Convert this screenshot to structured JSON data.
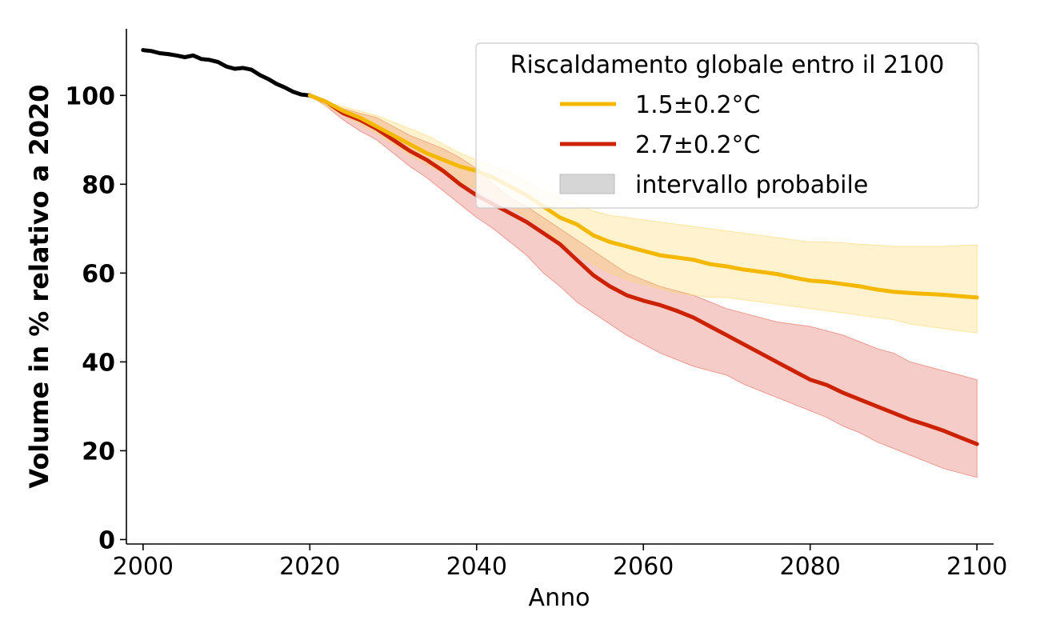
{
  "chart_data": {
    "type": "line",
    "xlabel": "Anno",
    "ylabel": "Volume in % relativo a 2020",
    "xlim": [
      1998,
      2102
    ],
    "ylim": [
      -1,
      115
    ],
    "x_ticks": [
      2000,
      2020,
      2040,
      2060,
      2080,
      2100
    ],
    "y_ticks": [
      0,
      20,
      40,
      60,
      80,
      100
    ],
    "x_tick_labels": [
      "2000",
      "2020",
      "2040",
      "2060",
      "2080",
      "2100"
    ],
    "y_tick_labels": [
      "0",
      "20",
      "40",
      "60",
      "80",
      "100"
    ],
    "legend": {
      "title": "Riscaldamento globale entro il 2100",
      "placement": "top-right",
      "entries": [
        {
          "label": "1.5±0.2°C",
          "color": "#f5b800",
          "kind": "line"
        },
        {
          "label": "2.7±0.2°C",
          "color": "#cc2200",
          "kind": "line"
        },
        {
          "label": "intervallo probabile",
          "color": "#d6d6d6",
          "kind": "patch"
        }
      ]
    },
    "series": [
      {
        "name": "observed",
        "color": "#000000",
        "x": [
          2000,
          2001,
          2002,
          2003,
          2004,
          2005,
          2006,
          2007,
          2008,
          2009,
          2010,
          2011,
          2012,
          2013,
          2014,
          2015,
          2016,
          2017,
          2018,
          2019,
          2020
        ],
        "values": [
          110.2,
          110.0,
          109.5,
          109.3,
          109.0,
          108.6,
          109.0,
          108.2,
          108.0,
          107.5,
          106.5,
          106.0,
          106.2,
          105.8,
          104.6,
          103.7,
          102.6,
          101.8,
          100.8,
          100.2,
          100.0
        ]
      },
      {
        "name": "2.7±0.2°C",
        "color": "#cc2200",
        "band_color": "#e06050",
        "x": [
          2020,
          2022,
          2024,
          2026,
          2028,
          2030,
          2032,
          2034,
          2036,
          2038,
          2040,
          2042,
          2044,
          2046,
          2048,
          2050,
          2052,
          2054,
          2056,
          2058,
          2060,
          2062,
          2064,
          2066,
          2068,
          2070,
          2072,
          2074,
          2076,
          2078,
          2080,
          2082,
          2084,
          2086,
          2088,
          2090,
          2092,
          2094,
          2096,
          2098,
          2100
        ],
        "values": [
          100.0,
          98.5,
          96.0,
          94.5,
          92.5,
          90.0,
          87.5,
          85.5,
          83.0,
          80.0,
          77.5,
          75.5,
          73.5,
          71.5,
          69.0,
          66.5,
          63.0,
          59.5,
          57.0,
          55.0,
          53.8,
          52.8,
          51.5,
          50.0,
          48.0,
          46.0,
          44.0,
          42.0,
          40.0,
          38.0,
          36.0,
          34.8,
          33.0,
          31.5,
          30.0,
          28.5,
          27.0,
          25.8,
          24.5,
          23.0,
          21.5
        ],
        "lower": [
          100.0,
          97.5,
          94.5,
          92.0,
          90.0,
          87.0,
          84.0,
          81.5,
          78.5,
          75.5,
          72.5,
          70.0,
          67.0,
          64.0,
          60.0,
          57.0,
          53.5,
          51.0,
          48.5,
          46.0,
          44.0,
          42.0,
          40.5,
          39.0,
          38.0,
          37.0,
          35.0,
          33.5,
          32.0,
          30.5,
          29.0,
          27.5,
          25.5,
          24.0,
          22.0,
          20.5,
          19.0,
          17.5,
          16.0,
          15.0,
          14.0
        ],
        "upper": [
          100.0,
          98.5,
          97.0,
          96.0,
          95.0,
          93.0,
          91.0,
          89.5,
          88.0,
          86.0,
          83.5,
          80.0,
          77.0,
          75.0,
          72.5,
          70.0,
          67.5,
          65.0,
          62.5,
          60.0,
          58.5,
          57.0,
          56.0,
          55.0,
          53.5,
          52.0,
          51.0,
          50.0,
          49.0,
          48.5,
          48.0,
          47.0,
          46.0,
          44.5,
          43.0,
          42.0,
          40.0,
          39.0,
          38.0,
          37.0,
          36.0
        ]
      },
      {
        "name": "1.5±0.2°C",
        "color": "#f5b800",
        "band_color": "#fcd76a",
        "x": [
          2020,
          2022,
          2024,
          2026,
          2028,
          2030,
          2032,
          2034,
          2036,
          2038,
          2040,
          2042,
          2044,
          2046,
          2048,
          2050,
          2052,
          2054,
          2056,
          2058,
          2060,
          2062,
          2064,
          2066,
          2068,
          2070,
          2072,
          2074,
          2076,
          2078,
          2080,
          2082,
          2084,
          2086,
          2088,
          2090,
          2092,
          2094,
          2096,
          2098,
          2100
        ],
        "values": [
          100.0,
          98.5,
          96.5,
          95.0,
          93.0,
          91.0,
          89.0,
          87.0,
          85.5,
          84.0,
          83.0,
          81.5,
          79.5,
          77.5,
          75.0,
          72.5,
          71.0,
          68.5,
          67.0,
          66.0,
          65.0,
          64.0,
          63.5,
          63.0,
          62.0,
          61.5,
          60.8,
          60.3,
          59.8,
          59.0,
          58.3,
          58.0,
          57.5,
          57.0,
          56.3,
          55.8,
          55.5,
          55.3,
          55.1,
          54.8,
          54.5
        ],
        "lower": [
          100.0,
          97.5,
          95.5,
          93.5,
          91.5,
          89.0,
          86.5,
          84.5,
          82.5,
          80.5,
          79.0,
          77.0,
          75.0,
          72.5,
          70.0,
          67.0,
          64.5,
          62.0,
          60.0,
          58.5,
          57.5,
          56.5,
          55.5,
          55.0,
          54.5,
          54.5,
          54.0,
          53.5,
          53.0,
          52.5,
          52.0,
          51.5,
          51.0,
          50.5,
          50.0,
          49.5,
          48.5,
          48.0,
          47.5,
          47.0,
          46.5
        ],
        "upper": [
          100.0,
          98.5,
          97.5,
          96.5,
          95.5,
          94.0,
          92.5,
          91.0,
          89.0,
          87.0,
          85.5,
          84.0,
          82.5,
          80.5,
          78.5,
          77.0,
          75.5,
          74.0,
          73.0,
          72.5,
          72.0,
          71.5,
          71.0,
          70.5,
          70.0,
          69.5,
          69.0,
          68.5,
          68.0,
          67.5,
          67.0,
          67.0,
          66.8,
          66.5,
          66.3,
          66.0,
          66.0,
          66.0,
          66.0,
          66.2,
          66.3
        ]
      }
    ]
  }
}
